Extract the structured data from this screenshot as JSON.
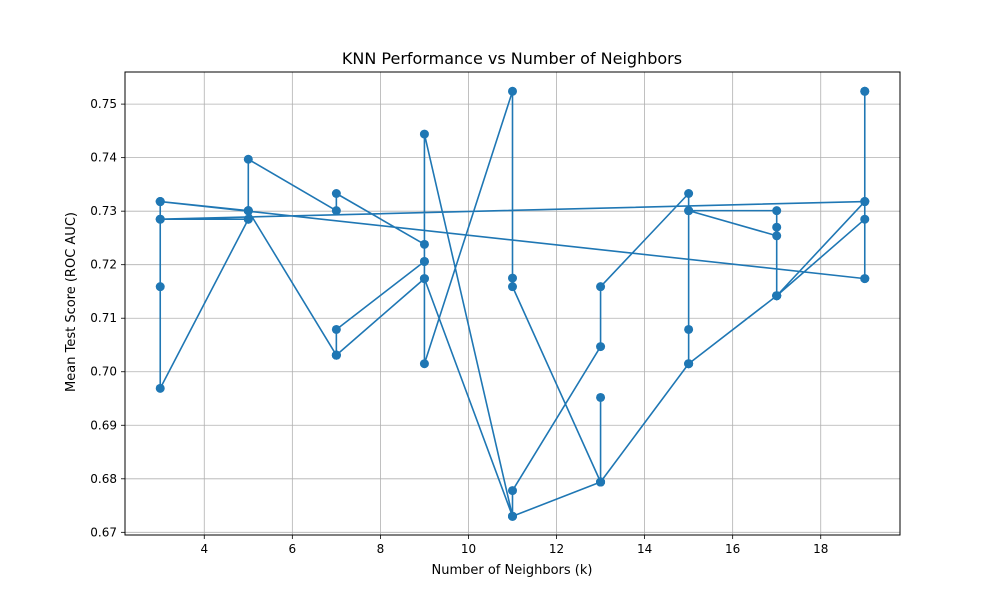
{
  "chart_data": {
    "type": "line",
    "title": "KNN Performance vs Number of Neighbors",
    "xlabel": "Number of Neighbors (k)",
    "ylabel": "Mean Test Score (ROC AUC)",
    "xlim": [
      2.2,
      19.8
    ],
    "ylim": [
      0.6695,
      0.756
    ],
    "x_ticks": [
      4,
      6,
      8,
      10,
      12,
      14,
      16,
      18
    ],
    "y_ticks": [
      0.67,
      0.68,
      0.69,
      0.7,
      0.71,
      0.72,
      0.73,
      0.74,
      0.75
    ],
    "y_tick_labels": [
      "0.67",
      "0.68",
      "0.69",
      "0.70",
      "0.71",
      "0.72",
      "0.73",
      "0.74",
      "0.75"
    ],
    "grid": true,
    "legend": "none",
    "color": "#1f77b4",
    "marker": "circle",
    "series": [
      {
        "x": [
          3,
          3,
          3,
          3,
          5,
          5,
          5,
          7,
          7,
          9,
          9,
          9,
          11,
          11,
          11,
          13,
          13,
          13,
          15,
          15,
          15,
          17,
          17,
          17,
          19,
          19,
          19,
          3,
          3,
          5,
          5,
          7,
          7,
          7,
          9,
          9,
          11,
          11,
          13,
          13,
          15,
          15,
          17,
          17,
          17,
          19,
          19,
          19,
          19,
          3,
          3,
          5,
          5,
          7,
          7,
          9,
          9,
          11,
          11,
          13,
          13,
          15,
          15,
          17,
          17,
          19
        ],
        "y": [
          0.7318,
          0.7285,
          0.7159,
          0.6969,
          0.7285,
          0.7301,
          0.7397,
          0.7301,
          0.7333,
          0.7238,
          0.7206,
          0.7015,
          0.7524,
          0.7175,
          0.7159,
          0.6794,
          0.6952,
          0.6794,
          0.7015,
          0.7079,
          0.7301,
          0.7301,
          0.727,
          0.7142,
          0.7285,
          0.7174,
          0.7318,
          0.7285,
          0.7285,
          0.7285,
          0.7301,
          0.7031,
          0.7031,
          0.7079,
          0.7206,
          0.7444,
          0.673,
          0.6778,
          0.7047,
          0.7159,
          0.7333,
          0.7301,
          0.7254,
          0.7142,
          0.7142,
          0.7318,
          0.7524,
          0.7524,
          0.7174,
          0.7318,
          0.7318,
          0.7301,
          0.7301,
          0.7031,
          0.7031,
          0.7174,
          0.7174,
          0.673,
          0.673,
          0.6794,
          0.6794,
          0.7015,
          0.7015,
          0.7142,
          0.7142,
          0.7318
        ]
      }
    ]
  }
}
